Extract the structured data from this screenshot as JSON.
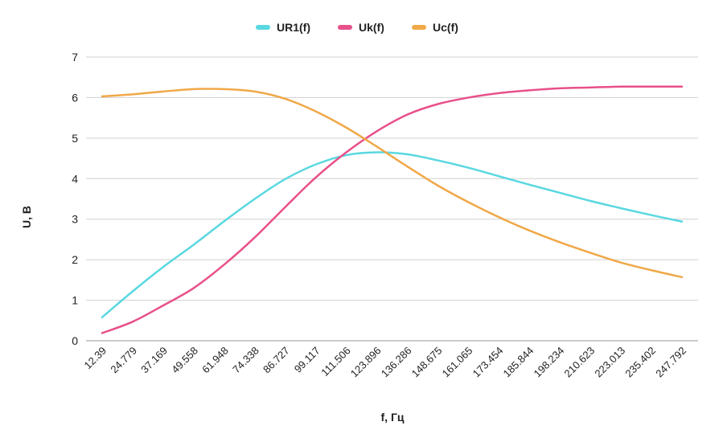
{
  "chart_data": {
    "type": "line",
    "x": [
      "12.39",
      "24.779",
      "37.169",
      "49.558",
      "61.948",
      "74.338",
      "86.727",
      "99.117",
      "111.506",
      "123.896",
      "136.286",
      "148.675",
      "161.065",
      "173.454",
      "185.844",
      "198.234",
      "210.623",
      "223.013",
      "235.402",
      "247.792"
    ],
    "xlabel": "f, Гц",
    "ylabel": "U, В",
    "ylim": [
      0,
      7
    ],
    "yticks": [
      0,
      1,
      2,
      3,
      4,
      5,
      6,
      7
    ],
    "grid": true,
    "legend_position": "top-center",
    "series": [
      {
        "name": "UR1(f)",
        "color": "#5ad8e0",
        "values": [
          0.58,
          1.22,
          1.82,
          2.37,
          2.95,
          3.5,
          3.99,
          4.35,
          4.58,
          4.65,
          4.6,
          4.45,
          4.27,
          4.06,
          3.85,
          3.65,
          3.45,
          3.27,
          3.1,
          2.94
        ]
      },
      {
        "name": "Uk(f)",
        "color": "#e8508a",
        "values": [
          0.19,
          0.47,
          0.87,
          1.3,
          1.88,
          2.55,
          3.3,
          4.03,
          4.65,
          5.17,
          5.58,
          5.84,
          6.0,
          6.11,
          6.18,
          6.23,
          6.25,
          6.27,
          6.27,
          6.27
        ]
      },
      {
        "name": "Uc(f)",
        "color": "#f0a848",
        "values": [
          6.03,
          6.08,
          6.15,
          6.21,
          6.21,
          6.15,
          5.97,
          5.66,
          5.26,
          4.79,
          4.3,
          3.83,
          3.42,
          3.05,
          2.72,
          2.43,
          2.17,
          1.93,
          1.74,
          1.57
        ]
      }
    ]
  }
}
